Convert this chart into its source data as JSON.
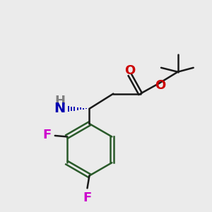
{
  "bg_color": "#ebebeb",
  "atom_colors": {
    "C": "#000000",
    "N": "#0000b0",
    "O": "#cc0000",
    "F": "#cc00cc",
    "H": "#808080"
  },
  "bond_color": "#1a1a1a",
  "bond_width": 1.8,
  "ring_bond_color": "#2a5a2a"
}
